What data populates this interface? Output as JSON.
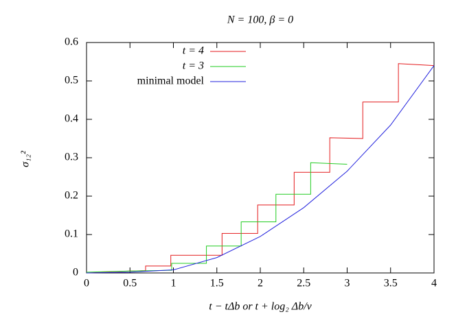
{
  "chart_data": {
    "type": "line",
    "title": "N = 100,  β = 0",
    "xlabel": "t − tΔb  or  t + log₂ Δb/v",
    "ylabel": "σ₁₂²",
    "xlim": [
      0,
      4
    ],
    "ylim": [
      0,
      0.6
    ],
    "xticks": [
      0,
      0.5,
      1,
      1.5,
      2,
      2.5,
      3,
      3.5,
      4
    ],
    "yticks": [
      0,
      0.1,
      0.2,
      0.3,
      0.4,
      0.5,
      0.6
    ],
    "grid": false,
    "legend": "upper left",
    "series": [
      {
        "name": "t = 4",
        "color": "#e41a1c",
        "x": [
          0,
          0.3,
          0.5,
          0.68,
          0.68,
          0.97,
          0.97,
          1.56,
          1.56,
          1.97,
          1.97,
          2.39,
          2.39,
          2.8,
          2.8,
          3.18,
          3.18,
          3.59,
          3.59,
          4
        ],
        "values": [
          0,
          0.003,
          0.005,
          0.006,
          0.018,
          0.018,
          0.046,
          0.046,
          0.103,
          0.103,
          0.177,
          0.177,
          0.262,
          0.262,
          0.352,
          0.35,
          0.445,
          0.445,
          0.545,
          0.54
        ]
      },
      {
        "name": "t = 3",
        "color": "#22cc22",
        "x": [
          0,
          0.5,
          0.98,
          0.98,
          1.38,
          1.38,
          1.78,
          1.78,
          2.18,
          2.18,
          2.58,
          2.58,
          3
        ],
        "values": [
          0.002,
          0.005,
          0.007,
          0.025,
          0.025,
          0.07,
          0.07,
          0.133,
          0.133,
          0.205,
          0.205,
          0.287,
          0.283
        ]
      },
      {
        "name": "minimal model",
        "color": "#2222dd",
        "x": [
          0,
          0.5,
          1,
          1.5,
          2,
          2.5,
          3,
          3.5,
          4
        ],
        "values": [
          0,
          0.002,
          0.008,
          0.04,
          0.095,
          0.17,
          0.265,
          0.385,
          0.54
        ]
      }
    ]
  }
}
